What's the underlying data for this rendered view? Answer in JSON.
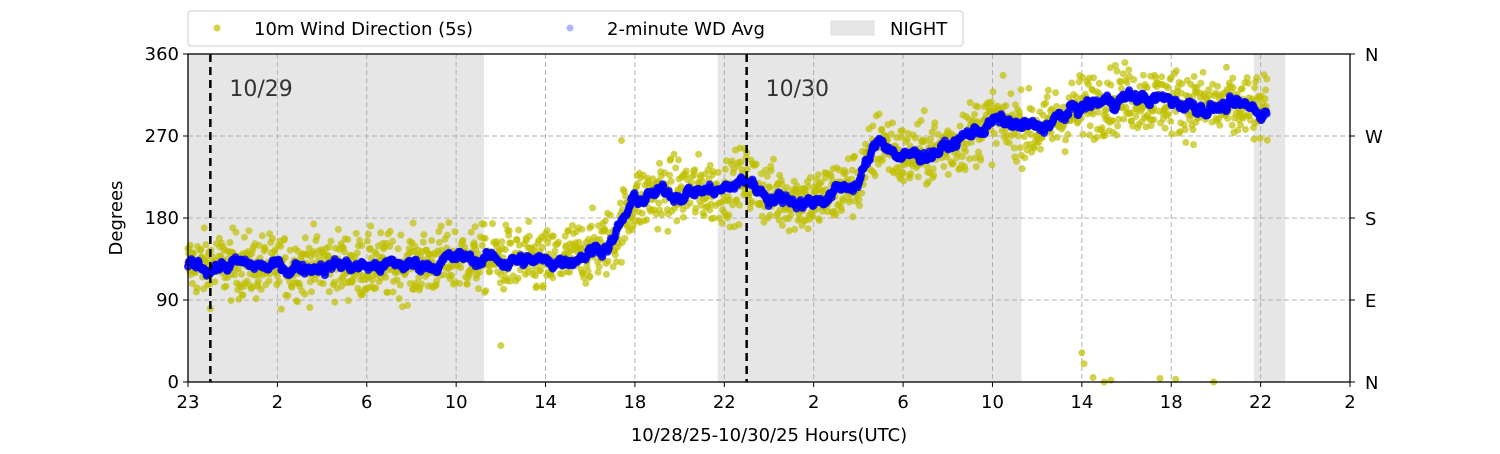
{
  "chart_data": {
    "type": "scatter",
    "title": "",
    "xlabel": "10/28/25-10/30/25  Hours(UTC)",
    "ylabel": "Degrees",
    "xlim_hours": [
      0,
      52
    ],
    "ylim": [
      0,
      360
    ],
    "grid": true,
    "legend_placement": "top-center",
    "x_ticks": [
      {
        "h": 0,
        "label": "23"
      },
      {
        "h": 4,
        "label": "2"
      },
      {
        "h": 8,
        "label": "6"
      },
      {
        "h": 12,
        "label": "10"
      },
      {
        "h": 16,
        "label": "14"
      },
      {
        "h": 20,
        "label": "18"
      },
      {
        "h": 24,
        "label": "22"
      },
      {
        "h": 28,
        "label": "2"
      },
      {
        "h": 32,
        "label": "6"
      },
      {
        "h": 36,
        "label": "10"
      },
      {
        "h": 40,
        "label": "14"
      },
      {
        "h": 44,
        "label": "18"
      },
      {
        "h": 48,
        "label": "22"
      },
      {
        "h": 52,
        "label": "2"
      }
    ],
    "y_ticks": [
      0,
      90,
      180,
      270,
      360
    ],
    "y_ticks_right": [
      {
        "v": 0,
        "label": "N"
      },
      {
        "v": 90,
        "label": "E"
      },
      {
        "v": 180,
        "label": "S"
      },
      {
        "v": 270,
        "label": "W"
      },
      {
        "v": 360,
        "label": "N"
      }
    ],
    "legend": [
      {
        "name": "10m Wind Direction (5s)",
        "color": "#bfbf00"
      },
      {
        "name": "2-minute WD Avg",
        "color": "#0000ff"
      },
      {
        "name": "NIGHT",
        "color": "#e6e6e6"
      }
    ],
    "night_periods_hours": [
      [
        0,
        13.25
      ],
      [
        23.7,
        37.3
      ],
      [
        47.7,
        49.1
      ]
    ],
    "day_markers": [
      {
        "h": 1.0,
        "label": "10/29"
      },
      {
        "h": 25.0,
        "label": "10/30"
      }
    ],
    "avg_trend": {
      "hours": [
        0,
        2,
        4,
        6,
        8,
        10,
        12,
        14,
        16,
        18,
        19,
        20,
        22,
        24,
        25,
        26,
        28,
        30,
        31,
        32,
        34,
        36,
        38,
        40,
        42,
        44,
        46,
        48,
        48.3
      ],
      "degrees": [
        128,
        128,
        125,
        130,
        127,
        128,
        135,
        135,
        130,
        145,
        155,
        200,
        210,
        210,
        222,
        205,
        198,
        220,
        268,
        245,
        258,
        286,
        277,
        302,
        313,
        308,
        302,
        298,
        298
      ]
    },
    "scatter_spread_deg": 40,
    "outliers": {
      "hours": [
        40.0,
        40.1,
        40.5,
        41.0,
        41.3,
        43.5,
        44.2,
        45.9,
        19.4,
        21.1,
        14.0
      ],
      "degrees": [
        32,
        20,
        5,
        0,
        2,
        4,
        3,
        0,
        265,
        240,
        40
      ]
    }
  }
}
